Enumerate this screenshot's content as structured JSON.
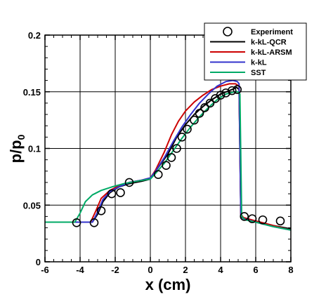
{
  "chart_data": {
    "type": "line",
    "xlabel": "x (cm)",
    "ylabel": "p/p",
    "ylabel_subscript": "0",
    "xlim": [
      -6,
      8
    ],
    "ylim": [
      0,
      0.2
    ],
    "xticks": [
      -6,
      -4,
      -2,
      0,
      2,
      4,
      6,
      8
    ],
    "yticks": [
      0,
      0.05,
      0.1,
      0.15,
      0.2
    ],
    "xtick_labels": [
      "-6",
      "-4",
      "-2",
      "0",
      "2",
      "4",
      "6",
      "8"
    ],
    "ytick_labels": [
      "0",
      "0.05",
      "0.1",
      "0.15",
      "0.2"
    ],
    "grid": true,
    "legend_position": "top-right",
    "series": [
      {
        "name": "Experiment",
        "kind": "markers",
        "color": "#000000",
        "points": [
          [
            -4.2,
            0.0345
          ],
          [
            -3.2,
            0.0345
          ],
          [
            -2.8,
            0.045
          ],
          [
            -2.2,
            0.06
          ],
          [
            -1.7,
            0.061
          ],
          [
            -1.2,
            0.07
          ],
          [
            0.45,
            0.077
          ],
          [
            0.9,
            0.085
          ],
          [
            1.2,
            0.092
          ],
          [
            1.5,
            0.1
          ],
          [
            1.8,
            0.11
          ],
          [
            2.1,
            0.117
          ],
          [
            2.5,
            0.125
          ],
          [
            2.8,
            0.131
          ],
          [
            3.1,
            0.136
          ],
          [
            3.4,
            0.14
          ],
          [
            3.7,
            0.144
          ],
          [
            4.0,
            0.147
          ],
          [
            4.3,
            0.149
          ],
          [
            4.65,
            0.151
          ],
          [
            4.95,
            0.152
          ],
          [
            5.35,
            0.04
          ],
          [
            5.8,
            0.038
          ],
          [
            6.4,
            0.037
          ],
          [
            7.4,
            0.036
          ]
        ]
      },
      {
        "name": "k-kL-QCR",
        "kind": "line",
        "color": "#000000",
        "points": [
          [
            -6.0,
            0.035
          ],
          [
            -3.3,
            0.035
          ],
          [
            -3.0,
            0.042
          ],
          [
            -2.7,
            0.053
          ],
          [
            -2.3,
            0.061
          ],
          [
            -1.8,
            0.066
          ],
          [
            -1.2,
            0.069
          ],
          [
            -0.5,
            0.071
          ],
          [
            0.0,
            0.073
          ],
          [
            0.3,
            0.08
          ],
          [
            1.0,
            0.095
          ],
          [
            1.5,
            0.11
          ],
          [
            2.0,
            0.121
          ],
          [
            2.5,
            0.13
          ],
          [
            3.0,
            0.137
          ],
          [
            3.5,
            0.143
          ],
          [
            4.0,
            0.148
          ],
          [
            4.5,
            0.151
          ],
          [
            4.8,
            0.153
          ],
          [
            4.9,
            0.154
          ],
          [
            5.05,
            0.152
          ],
          [
            5.15,
            0.04
          ],
          [
            5.3,
            0.038
          ],
          [
            6.0,
            0.036
          ],
          [
            7.0,
            0.032
          ],
          [
            8.0,
            0.029
          ]
        ]
      },
      {
        "name": "k-kL-ARSM",
        "kind": "line",
        "color": "#cc0000",
        "points": [
          [
            -6.0,
            0.035
          ],
          [
            -3.4,
            0.035
          ],
          [
            -3.1,
            0.045
          ],
          [
            -2.8,
            0.056
          ],
          [
            -2.3,
            0.063
          ],
          [
            -1.8,
            0.067
          ],
          [
            -1.2,
            0.07
          ],
          [
            -0.5,
            0.072
          ],
          [
            0.0,
            0.074
          ],
          [
            0.3,
            0.081
          ],
          [
            0.8,
            0.097
          ],
          [
            1.2,
            0.112
          ],
          [
            1.6,
            0.124
          ],
          [
            2.0,
            0.133
          ],
          [
            2.5,
            0.141
          ],
          [
            3.0,
            0.147
          ],
          [
            3.5,
            0.152
          ],
          [
            4.0,
            0.155
          ],
          [
            4.5,
            0.157
          ],
          [
            4.85,
            0.157
          ],
          [
            5.05,
            0.155
          ],
          [
            5.15,
            0.042
          ],
          [
            5.3,
            0.039
          ],
          [
            6.0,
            0.036
          ],
          [
            7.0,
            0.032
          ],
          [
            8.0,
            0.028
          ]
        ]
      },
      {
        "name": "k-kL",
        "kind": "line",
        "color": "#3333cc",
        "points": [
          [
            -6.0,
            0.035
          ],
          [
            -3.3,
            0.035
          ],
          [
            -3.0,
            0.044
          ],
          [
            -2.7,
            0.055
          ],
          [
            -2.3,
            0.062
          ],
          [
            -1.8,
            0.066
          ],
          [
            -1.2,
            0.07
          ],
          [
            -0.5,
            0.072
          ],
          [
            0.0,
            0.074
          ],
          [
            0.3,
            0.08
          ],
          [
            0.8,
            0.092
          ],
          [
            1.3,
            0.106
          ],
          [
            1.8,
            0.119
          ],
          [
            2.3,
            0.13
          ],
          [
            2.8,
            0.14
          ],
          [
            3.3,
            0.148
          ],
          [
            3.8,
            0.155
          ],
          [
            4.3,
            0.159
          ],
          [
            4.7,
            0.16
          ],
          [
            4.95,
            0.159
          ],
          [
            5.05,
            0.157
          ],
          [
            5.15,
            0.041
          ],
          [
            5.3,
            0.038
          ],
          [
            6.0,
            0.035
          ],
          [
            7.0,
            0.031
          ],
          [
            8.0,
            0.028
          ]
        ]
      },
      {
        "name": "SST",
        "kind": "line",
        "color": "#00aa66",
        "points": [
          [
            -6.0,
            0.035
          ],
          [
            -4.3,
            0.035
          ],
          [
            -4.0,
            0.043
          ],
          [
            -3.7,
            0.053
          ],
          [
            -3.3,
            0.059
          ],
          [
            -2.8,
            0.063
          ],
          [
            -2.2,
            0.066
          ],
          [
            -1.5,
            0.069
          ],
          [
            -0.8,
            0.071
          ],
          [
            0.0,
            0.073
          ],
          [
            0.3,
            0.078
          ],
          [
            0.8,
            0.087
          ],
          [
            1.3,
            0.098
          ],
          [
            1.8,
            0.109
          ],
          [
            2.3,
            0.119
          ],
          [
            2.8,
            0.128
          ],
          [
            3.3,
            0.136
          ],
          [
            3.8,
            0.143
          ],
          [
            4.3,
            0.148
          ],
          [
            4.8,
            0.15
          ],
          [
            5.0,
            0.15
          ],
          [
            5.1,
            0.148
          ],
          [
            5.2,
            0.04
          ],
          [
            5.4,
            0.037
          ],
          [
            6.0,
            0.035
          ],
          [
            7.0,
            0.031
          ],
          [
            8.0,
            0.028
          ]
        ]
      }
    ]
  }
}
